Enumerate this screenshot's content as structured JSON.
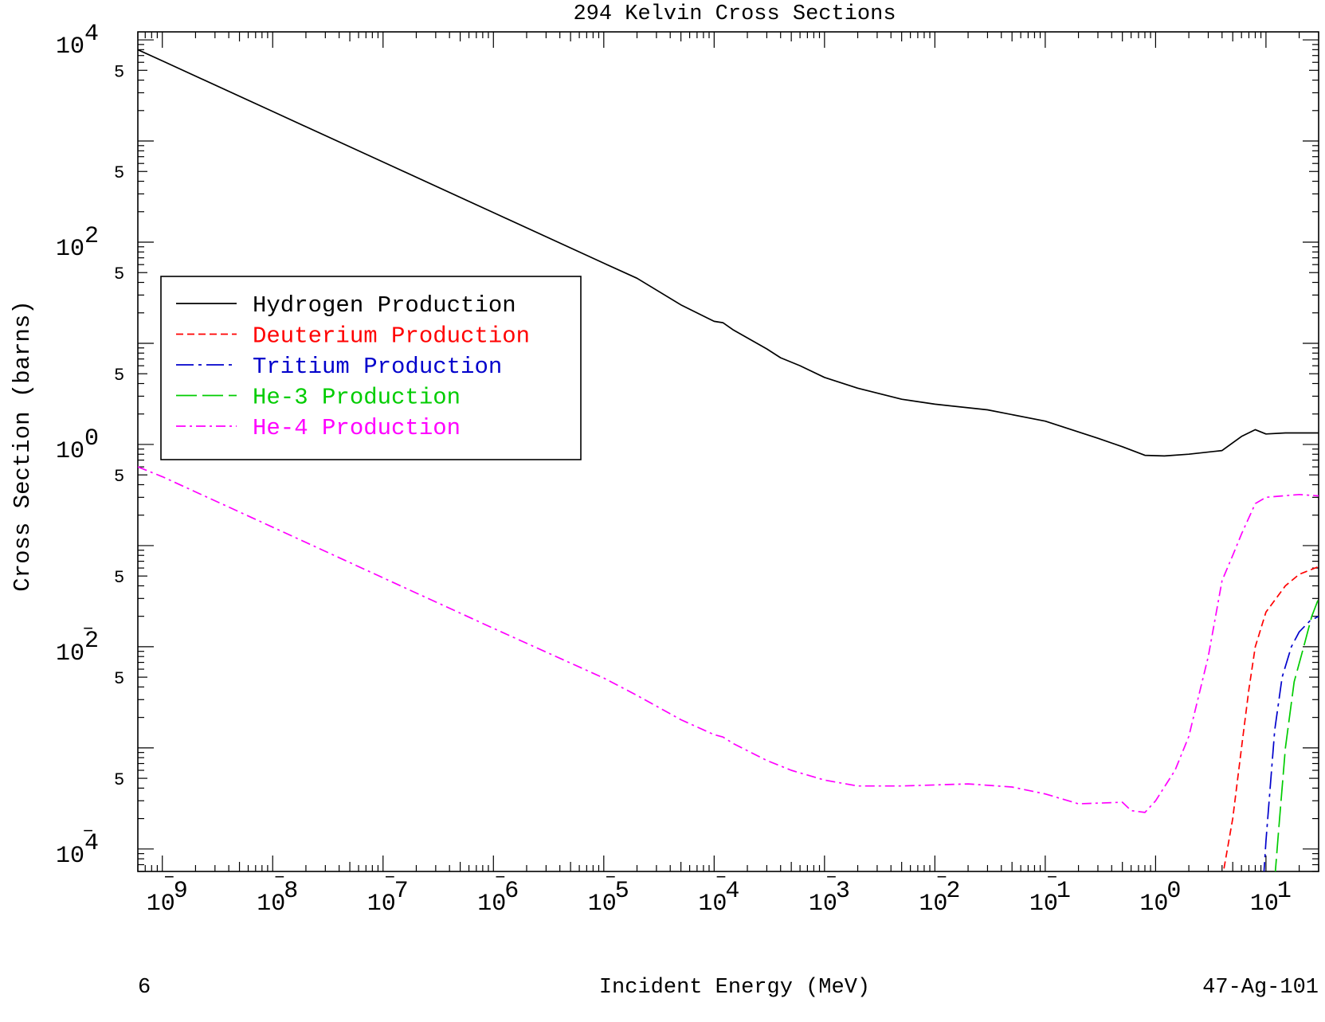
{
  "chart_data": {
    "type": "line",
    "title": "294 Kelvin Cross Sections",
    "xlabel": "Incident Energy (MeV)",
    "ylabel": "Cross Section (barns)",
    "bottom_left_text": "6",
    "bottom_right_text": "47-Ag-101",
    "x_scale": "log",
    "y_scale": "log",
    "xlim": [
      6e-10,
      30
    ],
    "ylim": [
      6e-05,
      12000.0
    ],
    "x_ticks": [
      {
        "base": "10",
        "exp": "-9"
      },
      {
        "base": "10",
        "exp": "-8"
      },
      {
        "base": "10",
        "exp": "-7"
      },
      {
        "base": "10",
        "exp": "-6"
      },
      {
        "base": "10",
        "exp": "-5"
      },
      {
        "base": "10",
        "exp": "-4"
      },
      {
        "base": "10",
        "exp": "-3"
      },
      {
        "base": "10",
        "exp": "-2"
      },
      {
        "base": "10",
        "exp": "-1"
      },
      {
        "base": "10",
        "exp": "0"
      },
      {
        "base": "10",
        "exp": "1"
      }
    ],
    "y_ticks": [
      {
        "base": "10",
        "exp": "4"
      },
      {
        "base": "10",
        "exp": "2"
      },
      {
        "base": "10",
        "exp": "0"
      },
      {
        "base": "10",
        "exp": "-2"
      },
      {
        "base": "10",
        "exp": "-4"
      }
    ],
    "y_minor_label": "5",
    "legend_position": "upper-left",
    "series": [
      {
        "name": "Hydrogen Production",
        "color": "#000000",
        "dash": "solid",
        "points": [
          [
            6e-10,
            8000
          ],
          [
            1e-09,
            6200
          ],
          [
            1e-08,
            1960
          ],
          [
            1e-07,
            620
          ],
          [
            1e-06,
            196
          ],
          [
            1e-05,
            62
          ],
          [
            2e-05,
            44
          ],
          [
            5e-05,
            24
          ],
          [
            0.0001,
            16.5
          ],
          [
            0.00012,
            16
          ],
          [
            0.00015,
            13.5
          ],
          [
            0.0003,
            8.8
          ],
          [
            0.0004,
            7.2
          ],
          [
            0.0006,
            6.0
          ],
          [
            0.001,
            4.6
          ],
          [
            0.002,
            3.6
          ],
          [
            0.005,
            2.8
          ],
          [
            0.01,
            2.5
          ],
          [
            0.03,
            2.2
          ],
          [
            0.1,
            1.7
          ],
          [
            0.3,
            1.15
          ],
          [
            0.5,
            0.95
          ],
          [
            0.8,
            0.78
          ],
          [
            1.2,
            0.77
          ],
          [
            2.0,
            0.8
          ],
          [
            4.0,
            0.87
          ],
          [
            6.0,
            1.2
          ],
          [
            8.0,
            1.4
          ],
          [
            10.0,
            1.27
          ],
          [
            15.0,
            1.3
          ],
          [
            20.0,
            1.3
          ],
          [
            30.0,
            1.3
          ]
        ]
      },
      {
        "name": "Deuterium Production",
        "color": "#ff0000",
        "dash": "9,5",
        "points": [
          [
            4.0,
            5e-05
          ],
          [
            5.0,
            0.0002
          ],
          [
            6.0,
            0.001
          ],
          [
            7.0,
            0.0038
          ],
          [
            8.0,
            0.01
          ],
          [
            10.0,
            0.022
          ],
          [
            15.0,
            0.04
          ],
          [
            20.0,
            0.052
          ],
          [
            30.0,
            0.062
          ]
        ]
      },
      {
        "name": "Tritium Production",
        "color": "#0000cc",
        "dash": "22,6,4,6",
        "points": [
          [
            9.5,
            5e-05
          ],
          [
            10.0,
            0.00012
          ],
          [
            12.0,
            0.0015
          ],
          [
            14.0,
            0.005
          ],
          [
            17.0,
            0.01
          ],
          [
            20.0,
            0.014
          ],
          [
            25.0,
            0.018
          ],
          [
            30.0,
            0.02
          ]
        ]
      },
      {
        "name": "He-3 Production",
        "color": "#00cc00",
        "dash": "26,7",
        "points": [
          [
            12.0,
            5e-05
          ],
          [
            13.0,
            0.00015
          ],
          [
            15.0,
            0.001
          ],
          [
            18.0,
            0.0045
          ],
          [
            22.0,
            0.01
          ],
          [
            26.0,
            0.02
          ],
          [
            30.0,
            0.03
          ]
        ]
      },
      {
        "name": "He-4 Production",
        "color": "#ff00ff",
        "dash": "12,5,3,5",
        "points": [
          [
            6e-10,
            0.6
          ],
          [
            1e-09,
            0.48
          ],
          [
            1e-08,
            0.152
          ],
          [
            1e-07,
            0.048
          ],
          [
            1e-06,
            0.0152
          ],
          [
            1e-05,
            0.0049
          ],
          [
            2e-05,
            0.0033
          ],
          [
            5e-05,
            0.0019
          ],
          [
            0.0001,
            0.00135
          ],
          [
            0.00012,
            0.00128
          ],
          [
            0.00015,
            0.0011
          ],
          [
            0.0003,
            0.00075
          ],
          [
            0.0005,
            0.0006
          ],
          [
            0.001,
            0.00048
          ],
          [
            0.002,
            0.00042
          ],
          [
            0.005,
            0.00042
          ],
          [
            0.01,
            0.00043
          ],
          [
            0.02,
            0.00044
          ],
          [
            0.05,
            0.00041
          ],
          [
            0.1,
            0.00035
          ],
          [
            0.2,
            0.00028
          ],
          [
            0.5,
            0.00029
          ],
          [
            0.6,
            0.00024
          ],
          [
            0.8,
            0.00023
          ],
          [
            1.0,
            0.0003
          ],
          [
            1.5,
            0.0006
          ],
          [
            2.0,
            0.0013
          ],
          [
            3.0,
            0.008
          ],
          [
            4.0,
            0.045
          ],
          [
            5.0,
            0.08
          ],
          [
            6.0,
            0.13
          ],
          [
            8.0,
            0.26
          ],
          [
            10.0,
            0.3
          ],
          [
            20.0,
            0.32
          ],
          [
            30.0,
            0.31
          ]
        ]
      }
    ]
  }
}
